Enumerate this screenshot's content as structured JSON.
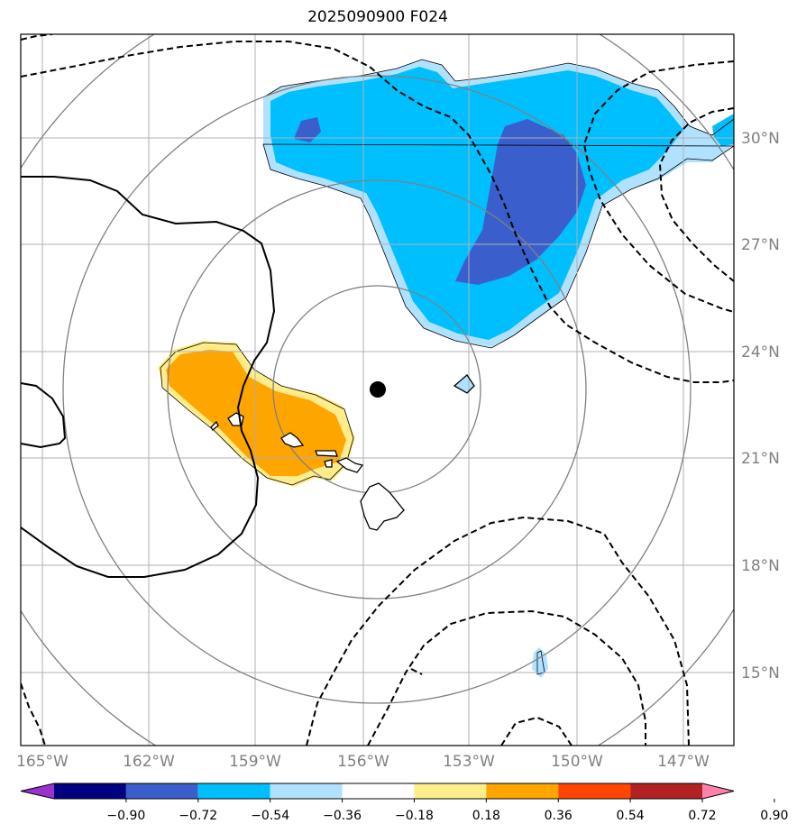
{
  "title": "2025090900 F024",
  "lon_labels": [
    "165°W",
    "162°W",
    "159°W",
    "156°W",
    "153°W",
    "150°W",
    "147°W"
  ],
  "lat_labels": [
    "30°N",
    "27°N",
    "24°N",
    "21°N",
    "18°N",
    "15°N"
  ],
  "colorbar": {
    "ticks": [
      "−0.90",
      "−0.72",
      "−0.54",
      "−0.36",
      "−0.18",
      "0.18",
      "0.36",
      "0.54",
      "0.72",
      "0.90"
    ],
    "colors": [
      "#9933cc",
      "#000080",
      "#3a5fcd",
      "#00bfff",
      "#b0e2ff",
      "#ffffff",
      "#ffec8b",
      "#ffa500",
      "#ff4500",
      "#b22222",
      "#ff82ab"
    ]
  },
  "colors": {
    "light_blue": "#b0e2ff",
    "deep_sky_blue": "#00bfff",
    "royal_blue": "#3a5fcd",
    "light_yellow": "#ffec8b",
    "orange": "#ffa500",
    "grid": "#b0b0b0",
    "range_rings": "#808080"
  }
}
